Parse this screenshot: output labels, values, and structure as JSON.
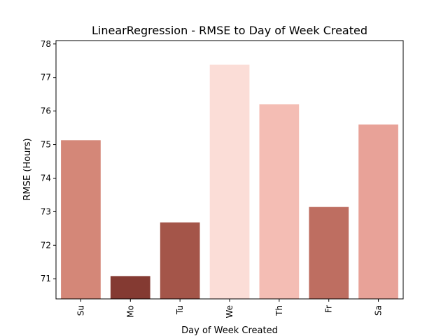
{
  "chart_data": {
    "type": "bar",
    "title": "LinearRegression - RMSE to Day of Week Created",
    "xlabel": "Day of Week Created",
    "ylabel": "RMSE (Hours)",
    "categories": [
      "Su",
      "Mo",
      "Tu",
      "We",
      "Th",
      "Fr",
      "Sa"
    ],
    "values": [
      75.13,
      71.08,
      72.68,
      77.38,
      76.2,
      73.14,
      75.6
    ],
    "bar_colors": [
      "#d48778",
      "#843a32",
      "#a45549",
      "#fbddd7",
      "#f4bdb4",
      "#be6e61",
      "#e8a298"
    ],
    "ylim": [
      70.4,
      78.1
    ],
    "yticks": [
      71,
      72,
      73,
      74,
      75,
      76,
      77,
      78
    ],
    "grid": false,
    "legend": "none"
  }
}
